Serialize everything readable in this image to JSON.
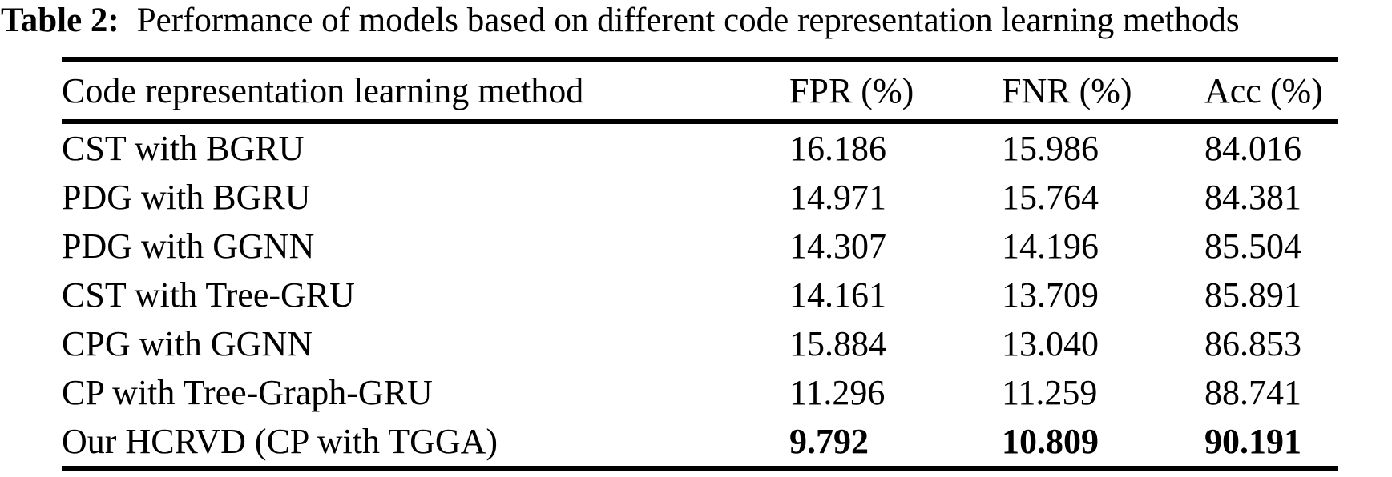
{
  "caption": {
    "label": "Table 2:",
    "text": "Performance of models based on different code representation learning methods"
  },
  "table": {
    "columns": [
      "Code representation learning method",
      "FPR (%)",
      "FNR (%)",
      "Acc (%)"
    ],
    "rows": [
      {
        "method": "CST with BGRU",
        "fpr": "16.186",
        "fnr": "15.986",
        "acc": "84.016"
      },
      {
        "method": "PDG with BGRU",
        "fpr": "14.971",
        "fnr": "15.764",
        "acc": "84.381"
      },
      {
        "method": "PDG with GGNN",
        "fpr": "14.307",
        "fnr": "14.196",
        "acc": "85.504"
      },
      {
        "method": "CST with Tree-GRU",
        "fpr": "14.161",
        "fnr": "13.709",
        "acc": "85.891"
      },
      {
        "method": "CPG with GGNN",
        "fpr": "15.884",
        "fnr": "13.040",
        "acc": "86.853"
      },
      {
        "method": "CP with Tree-Graph-GRU",
        "fpr": "11.296",
        "fnr": "11.259",
        "acc": "88.741"
      },
      {
        "method": "Our HCRVD (CP with TGGA)",
        "fpr": "9.792",
        "fnr": "10.809",
        "acc": "90.191"
      }
    ]
  },
  "chart_data": {
    "type": "table",
    "title": "Table 2: Performance of models based on different code representation learning methods",
    "columns": [
      "Code representation learning method",
      "FPR (%)",
      "FNR (%)",
      "Acc (%)"
    ],
    "rows": [
      [
        "CST with BGRU",
        16.186,
        15.986,
        84.016
      ],
      [
        "PDG with BGRU",
        14.971,
        15.764,
        84.381
      ],
      [
        "PDG with GGNN",
        14.307,
        14.196,
        85.504
      ],
      [
        "CST with Tree-GRU",
        14.161,
        13.709,
        85.891
      ],
      [
        "CPG with GGNN",
        15.884,
        13.04,
        86.853
      ],
      [
        "CP with Tree-Graph-GRU",
        11.296,
        11.259,
        88.741
      ],
      [
        "Our HCRVD (CP with TGGA)",
        9.792,
        10.809,
        90.191
      ]
    ],
    "bold_row_index": 6,
    "notes": "Best (bold) values: FPR 9.792, FNR 10.809, Acc 90.191 for Our HCRVD"
  }
}
